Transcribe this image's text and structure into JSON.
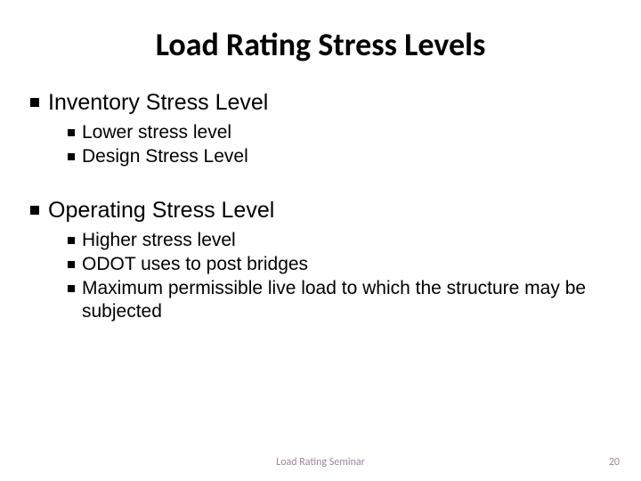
{
  "title": "Load Rating Stress Levels",
  "sections": [
    {
      "heading": "Inventory Stress Level",
      "items": [
        "Lower stress level",
        "Design Stress Level"
      ]
    },
    {
      "heading": "Operating Stress Level",
      "items": [
        "Higher stress level",
        "ODOT uses to post bridges",
        "Maximum permissible live load to which the structure may be subjected"
      ]
    }
  ],
  "footer_text": "Load Rating Seminar",
  "page_number": "20",
  "colors": {
    "background": "#ffffff",
    "text": "#000000",
    "footer": "#9f8299"
  },
  "typography": {
    "title_fontsize": 36,
    "title_weight": 700,
    "level1_fontsize": 25,
    "level2_fontsize": 21,
    "footer_fontsize": 12
  },
  "bullets": {
    "level1_size": 10,
    "level2_size": 8,
    "shape": "square",
    "color": "#000000"
  }
}
